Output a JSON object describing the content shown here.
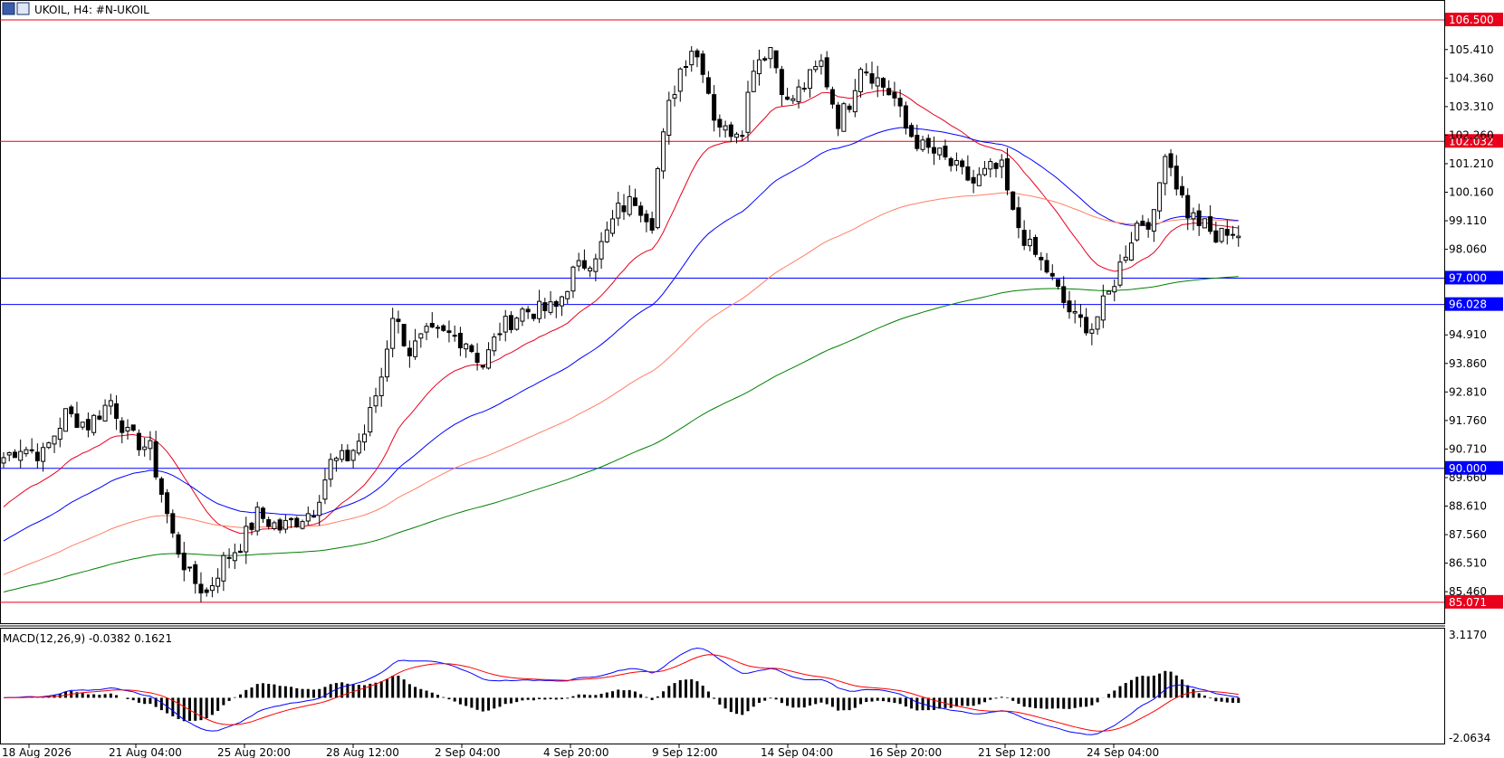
{
  "header": {
    "symbol_title": "UKOIL, H4:  #N-UKOIL",
    "icons": [
      "market-watch-icon",
      "chart-type-icon"
    ]
  },
  "macd": {
    "label": "MACD(12,26,9) -0.0382 0.1621",
    "axis_labels": [
      "3.1170",
      "-2.0634"
    ],
    "colors": {
      "histogram": "#000000",
      "macd": "#0000ff",
      "signal": "#ff0000"
    }
  },
  "chart_data": [
    {
      "type": "candlestick",
      "symbol": "UKOIL",
      "timeframe": "H4",
      "ylim": [
        84.3,
        107.2
      ],
      "y_ticks": [
        105.41,
        104.36,
        103.31,
        102.26,
        101.21,
        100.16,
        99.11,
        98.06,
        94.91,
        93.86,
        92.81,
        91.76,
        90.71,
        89.66,
        88.61,
        87.56,
        86.51,
        85.46
      ],
      "x_tick_labels": [
        "18 Aug 2026",
        "21 Aug 04:00",
        "25 Aug 20:00",
        "28 Aug 12:00",
        "2 Sep 04:00",
        "4 Sep 20:00",
        "9 Sep 12:00",
        "14 Sep 04:00",
        "16 Sep 20:00",
        "21 Sep 12:00",
        "24 Sep 04:00"
      ],
      "horizontal_lines": [
        {
          "price": 106.5,
          "label": "106.500",
          "color": "#e8001c"
        },
        {
          "price": 102.032,
          "label": "102.032",
          "color": "#e8001c"
        },
        {
          "price": 97.0,
          "label": "97.000",
          "color": "#0000ff"
        },
        {
          "price": 96.028,
          "label": "96.028",
          "color": "#0000ff"
        },
        {
          "price": 90.0,
          "label": "90.000",
          "color": "#0000ff"
        },
        {
          "price": 85.071,
          "label": "85.071",
          "color": "#e8001c"
        }
      ],
      "anchors": [
        [
          0,
          90.4
        ],
        [
          3,
          90.8
        ],
        [
          7,
          90.5
        ],
        [
          11,
          92.0
        ],
        [
          15,
          91.6
        ],
        [
          19,
          92.5
        ],
        [
          22,
          91.2
        ],
        [
          26,
          90.7
        ],
        [
          30,
          87.5
        ],
        [
          33,
          86.0
        ],
        [
          36,
          85.4
        ],
        [
          39,
          86.6
        ],
        [
          42,
          87.2
        ],
        [
          45,
          88.3
        ],
        [
          49,
          87.8
        ],
        [
          52,
          88.1
        ],
        [
          55,
          88.5
        ],
        [
          58,
          90.2
        ],
        [
          61,
          90.4
        ],
        [
          64,
          91.3
        ],
        [
          67,
          93.4
        ],
        [
          69,
          95.7
        ],
        [
          72,
          94.3
        ],
        [
          75,
          94.9
        ],
        [
          79,
          94.9
        ],
        [
          82,
          94.7
        ],
        [
          85,
          93.8
        ],
        [
          88,
          95.1
        ],
        [
          92,
          95.8
        ],
        [
          95,
          95.8
        ],
        [
          98,
          95.9
        ],
        [
          101,
          97.2
        ],
        [
          104,
          97.7
        ],
        [
          106,
          98.2
        ],
        [
          109,
          99.5
        ],
        [
          112,
          99.9
        ],
        [
          115,
          99.1
        ],
        [
          116,
          101.0
        ],
        [
          118,
          103.3
        ],
        [
          120,
          104.7
        ],
        [
          122,
          105.5
        ],
        [
          124,
          104.8
        ],
        [
          126,
          103.0
        ],
        [
          128,
          102.4
        ],
        [
          131,
          102.6
        ],
        [
          133,
          104.9
        ],
        [
          136,
          105.5
        ],
        [
          139,
          103.4
        ],
        [
          142,
          104.1
        ],
        [
          145,
          104.9
        ],
        [
          148,
          102.8
        ],
        [
          150,
          103.5
        ],
        [
          152,
          104.9
        ],
        [
          155,
          104.3
        ],
        [
          158,
          103.6
        ],
        [
          160,
          102.5
        ],
        [
          163,
          101.8
        ],
        [
          166,
          101.5
        ],
        [
          169,
          101.0
        ],
        [
          172,
          100.5
        ],
        [
          175,
          101.0
        ],
        [
          177,
          101.0
        ],
        [
          179,
          99.3
        ],
        [
          182,
          98.1
        ],
        [
          185,
          97.3
        ],
        [
          188,
          96.1
        ],
        [
          190,
          95.5
        ],
        [
          193,
          95.2
        ],
        [
          196,
          96.4
        ],
        [
          199,
          98.0
        ],
        [
          201,
          99.0
        ],
        [
          204,
          99.2
        ],
        [
          206,
          101.8
        ],
        [
          208,
          100.5
        ],
        [
          210,
          99.4
        ],
        [
          213,
          98.9
        ],
        [
          215,
          98.4
        ],
        [
          217,
          98.8
        ],
        [
          219,
          98.6
        ]
      ],
      "series": [
        {
          "name": "",
          "kind": "ema",
          "period": 21,
          "color": "#e8001c"
        },
        {
          "name": "",
          "kind": "ema",
          "period": 50,
          "color": "#0000ff"
        },
        {
          "name": "",
          "kind": "ema",
          "period": 100,
          "color": "#ff7f66"
        },
        {
          "name": "",
          "kind": "ema",
          "period": 200,
          "color": "#008000"
        }
      ],
      "seed": 7,
      "candle_count": 220,
      "colors": {
        "bull_body": "#ffffff",
        "bear_body": "#000000",
        "wick": "#000000"
      }
    }
  ]
}
